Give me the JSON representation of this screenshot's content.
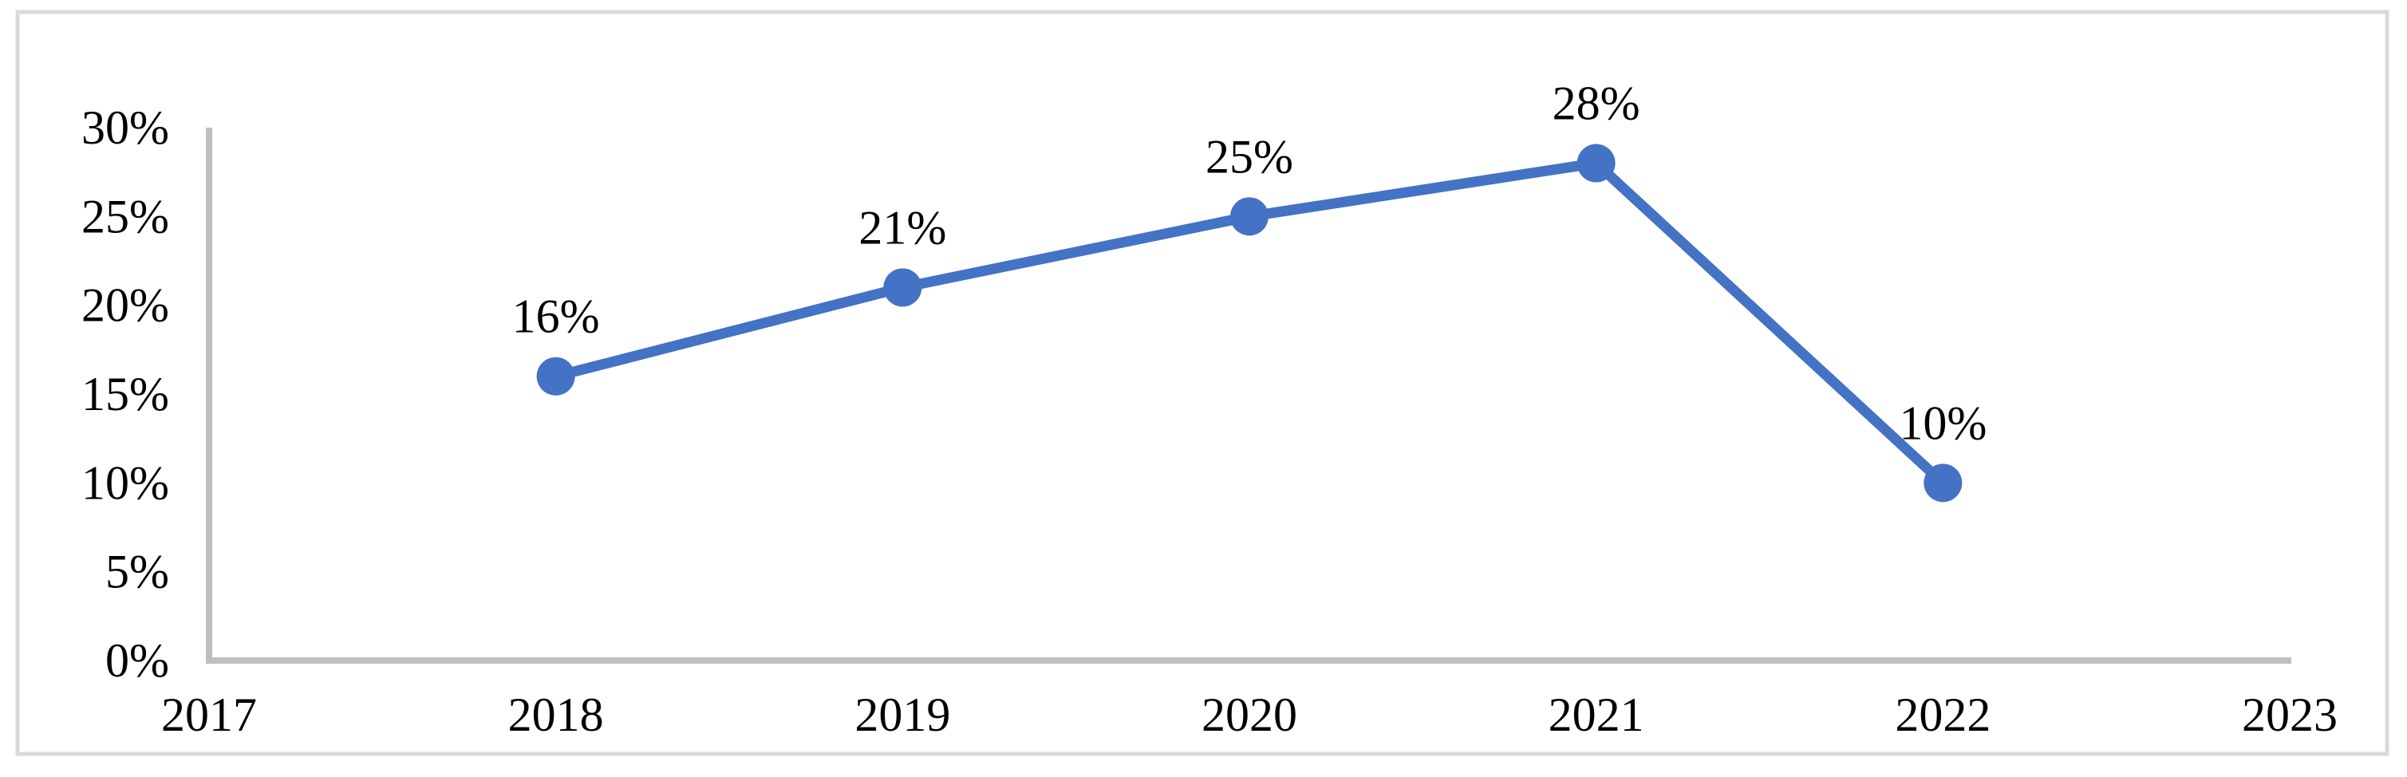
{
  "chart": {
    "background_color": "#FFFFFF",
    "frame_border_color": "#D9D9D9",
    "axis_line_color": "#BFBFBF",
    "text_color": "#000000",
    "series_color": "#4472C4"
  },
  "chart_data": {
    "type": "line",
    "title": "",
    "subtitle": "",
    "xlabel": "",
    "ylabel": "",
    "x": [
      2018,
      2019,
      2020,
      2021,
      2022
    ],
    "values": [
      16,
      21,
      25,
      28,
      10
    ],
    "point_labels": [
      "16%",
      "21%",
      "25%",
      "28%",
      "10%"
    ],
    "series_name": "",
    "x_ticks": [
      "2017",
      "2018",
      "2019",
      "2020",
      "2021",
      "2022",
      "2023"
    ],
    "x_tick_values": [
      2017,
      2018,
      2019,
      2020,
      2021,
      2022,
      2023
    ],
    "y_ticks": [
      "0%",
      "5%",
      "10%",
      "15%",
      "20%",
      "25%",
      "30%"
    ],
    "y_tick_values": [
      0,
      5,
      10,
      15,
      20,
      25,
      30
    ],
    "xlim": [
      2017,
      2023
    ],
    "ylim": [
      0,
      30
    ],
    "grid": false,
    "legend": false,
    "marker": "circle"
  }
}
